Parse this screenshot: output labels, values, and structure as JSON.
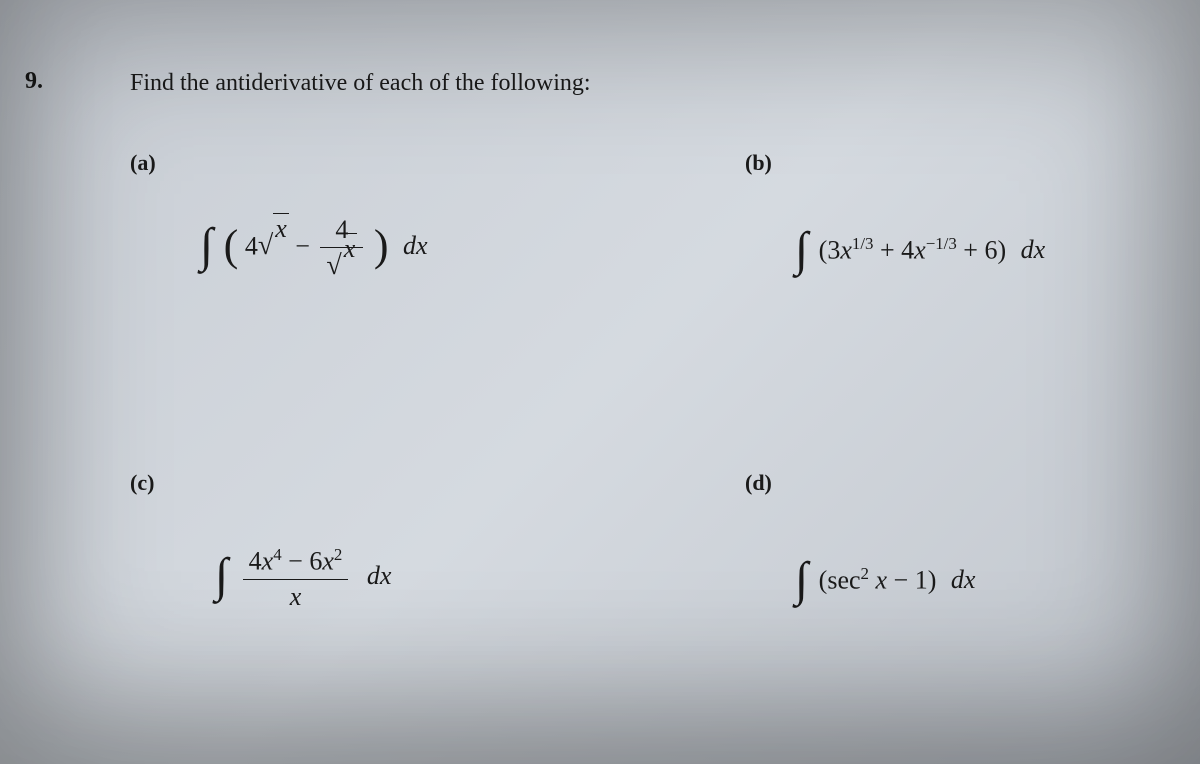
{
  "problem_number": "9.",
  "instruction": "Find the antiderivative of each of the following:",
  "parts": {
    "a": {
      "label": "(a)"
    },
    "b": {
      "label": "(b)"
    },
    "c": {
      "label": "(c)"
    },
    "d": {
      "label": "(d)"
    }
  },
  "formulas": {
    "a": {
      "integral": "∫",
      "coef1": "4",
      "sqrt_arg1": "x",
      "minus": "−",
      "frac_num": "4",
      "sqrt_arg2": "x",
      "dx": "dx"
    },
    "b": {
      "integral": "∫",
      "term1_coef": "3",
      "term1_var": "x",
      "term1_exp": "1/3",
      "plus1": "+",
      "term2_coef": "4",
      "term2_var": "x",
      "term2_exp": "−1/3",
      "plus2": "+",
      "term3": "6",
      "dx": "dx"
    },
    "c": {
      "integral": "∫",
      "num_coef1": "4",
      "num_var1": "x",
      "num_exp1": "4",
      "minus": "−",
      "num_coef2": "6",
      "num_var2": "x",
      "num_exp2": "2",
      "den_var": "x",
      "dx": "dx"
    },
    "d": {
      "integral": "∫",
      "func": "sec",
      "func_exp": "2",
      "var": "x",
      "minus": "−",
      "const": "1",
      "dx": "dx"
    }
  },
  "styling": {
    "background_colors": [
      "#c8cdd4",
      "#d5dae0",
      "#c0c5cc"
    ],
    "text_color": "#1a1a1a",
    "font_family_body": "Georgia, Times New Roman, serif",
    "font_family_math": "Cambria Math, Times New Roman, serif",
    "problem_number_fontsize": 24,
    "instruction_fontsize": 24,
    "part_label_fontsize": 22,
    "formula_fontsize": 26,
    "integral_fontsize": 48,
    "paren_fontsize": 44,
    "vignette_shadow": "inset 0 0 180px 40px rgba(0,0,0,0.25)"
  }
}
